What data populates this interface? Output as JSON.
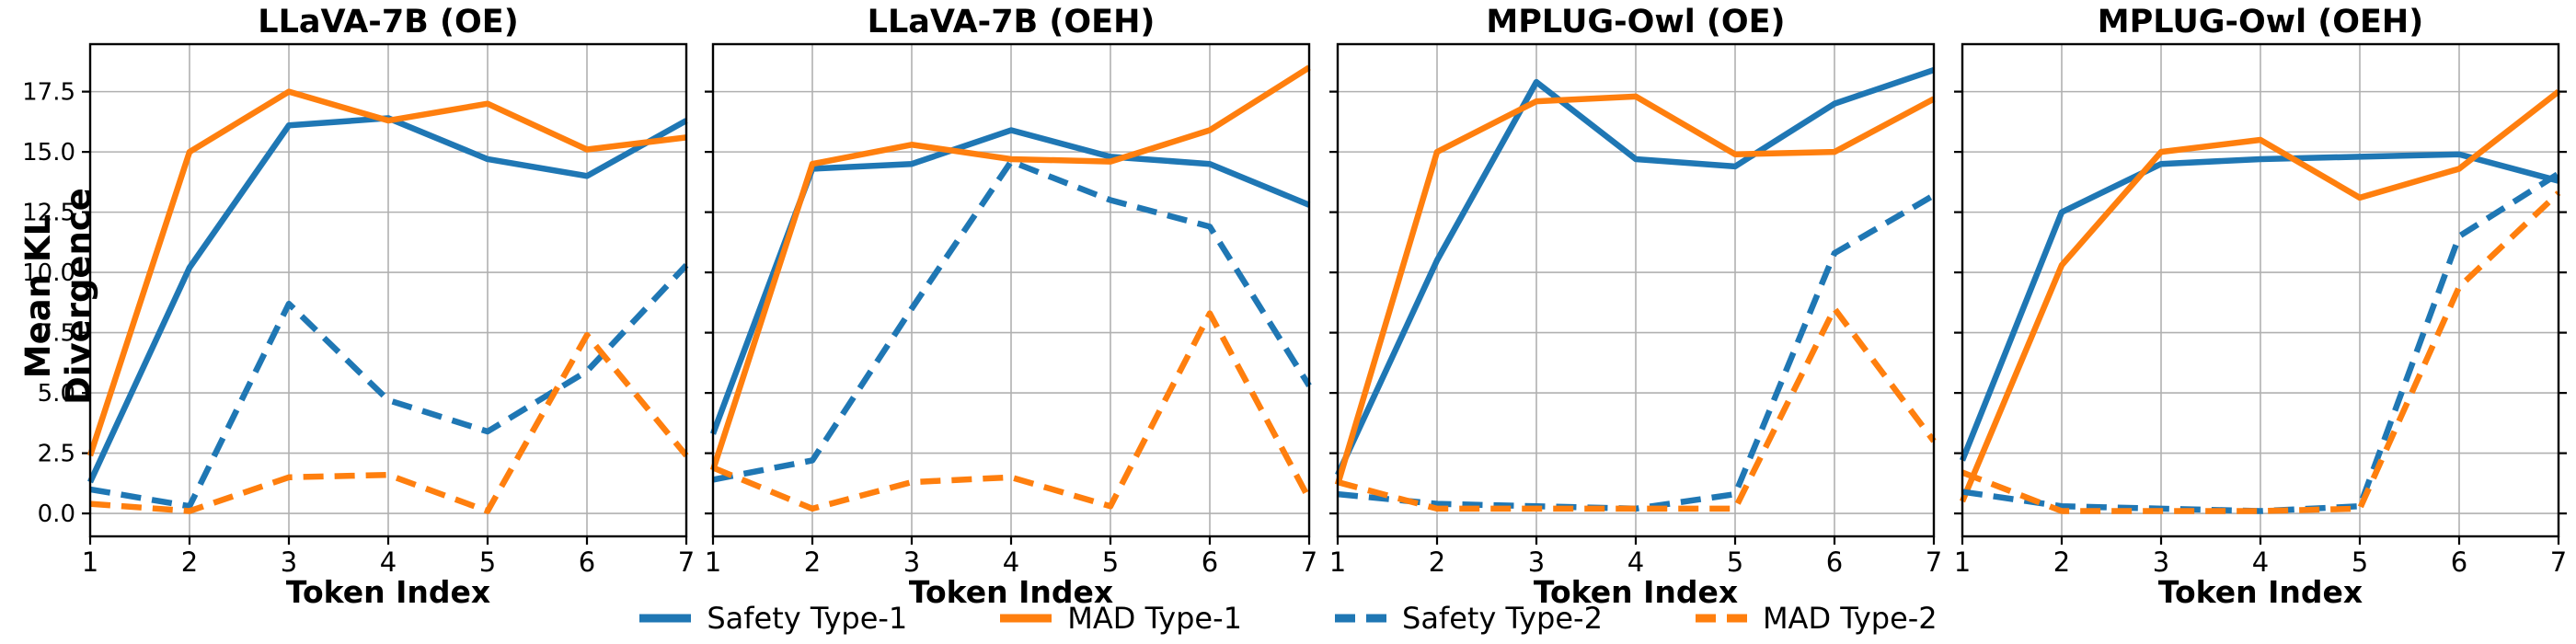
{
  "figure": {
    "ylabel": "Mean KL Divergence",
    "xlabel": "Token Index",
    "grid_color": "#b0b0b0",
    "spine_color": "#000000",
    "legend": [
      {
        "label": "Safety Type-1",
        "color": "#1f77b4",
        "dash": false
      },
      {
        "label": "MAD Type-1",
        "color": "#ff7f0e",
        "dash": false
      },
      {
        "label": "Safety Type-2",
        "color": "#1f77b4",
        "dash": true
      },
      {
        "label": "MAD Type-2",
        "color": "#ff7f0e",
        "dash": true
      }
    ]
  },
  "chart_data": [
    {
      "type": "line",
      "title": "LLaVA-7B (OE)",
      "xlabel": "Token Index",
      "ylabel": "Mean KL Divergence",
      "x": [
        1,
        2,
        3,
        4,
        5,
        6,
        7
      ],
      "xticks": [
        "1",
        "2",
        "3",
        "4",
        "5",
        "6",
        "7"
      ],
      "yticks": [
        0.0,
        2.5,
        5.0,
        7.5,
        10.0,
        12.5,
        15.0,
        17.5
      ],
      "ylim": [
        -0.95,
        19.47
      ],
      "grid": true,
      "series": [
        {
          "name": "Safety Type-1",
          "color": "#1f77b4",
          "style": "solid",
          "values": [
            1.3,
            10.2,
            16.1,
            16.4,
            14.7,
            14.0,
            16.3
          ]
        },
        {
          "name": "MAD Type-1",
          "color": "#ff7f0e",
          "style": "solid",
          "values": [
            2.4,
            15.0,
            17.5,
            16.3,
            17.0,
            15.1,
            15.6
          ]
        },
        {
          "name": "Safety Type-2",
          "color": "#1f77b4",
          "style": "dashed",
          "values": [
            1.0,
            0.3,
            8.7,
            4.7,
            3.4,
            5.9,
            10.3
          ]
        },
        {
          "name": "MAD Type-2",
          "color": "#ff7f0e",
          "style": "dashed",
          "values": [
            0.4,
            0.1,
            1.5,
            1.6,
            0.1,
            7.4,
            2.4
          ]
        }
      ]
    },
    {
      "type": "line",
      "title": "LLaVA-7B (OEH)",
      "xlabel": "Token Index",
      "ylabel": "Mean KL Divergence",
      "x": [
        1,
        2,
        3,
        4,
        5,
        6,
        7
      ],
      "xticks": [
        "1",
        "2",
        "3",
        "4",
        "5",
        "6",
        "7"
      ],
      "yticks": [
        0.0,
        2.5,
        5.0,
        7.5,
        10.0,
        12.5,
        15.0,
        17.5
      ],
      "ylim": [
        -0.95,
        19.47
      ],
      "grid": true,
      "series": [
        {
          "name": "Safety Type-1",
          "color": "#1f77b4",
          "style": "solid",
          "values": [
            3.3,
            14.3,
            14.5,
            15.9,
            14.8,
            14.5,
            12.8
          ]
        },
        {
          "name": "MAD Type-1",
          "color": "#ff7f0e",
          "style": "solid",
          "values": [
            1.8,
            14.5,
            15.3,
            14.7,
            14.6,
            15.9,
            18.5
          ]
        },
        {
          "name": "Safety Type-2",
          "color": "#1f77b4",
          "style": "dashed",
          "values": [
            1.4,
            2.2,
            8.5,
            14.6,
            13.0,
            11.9,
            5.3
          ]
        },
        {
          "name": "MAD Type-2",
          "color": "#ff7f0e",
          "style": "dashed",
          "values": [
            1.9,
            0.2,
            1.3,
            1.5,
            0.3,
            8.3,
            0.6
          ]
        }
      ]
    },
    {
      "type": "line",
      "title": "MPLUG-Owl (OE)",
      "xlabel": "Token Index",
      "ylabel": "Mean KL Divergence",
      "x": [
        1,
        2,
        3,
        4,
        5,
        6,
        7
      ],
      "xticks": [
        "1",
        "2",
        "3",
        "4",
        "5",
        "6",
        "7"
      ],
      "yticks": [
        0.0,
        2.5,
        5.0,
        7.5,
        10.0,
        12.5,
        15.0,
        17.5
      ],
      "ylim": [
        -0.95,
        19.47
      ],
      "grid": true,
      "series": [
        {
          "name": "Safety Type-1",
          "color": "#1f77b4",
          "style": "solid",
          "values": [
            1.6,
            10.5,
            17.9,
            14.7,
            14.4,
            17.0,
            18.4
          ]
        },
        {
          "name": "MAD Type-1",
          "color": "#ff7f0e",
          "style": "solid",
          "values": [
            1.2,
            15.0,
            17.1,
            17.3,
            14.9,
            15.0,
            17.2
          ]
        },
        {
          "name": "Safety Type-2",
          "color": "#1f77b4",
          "style": "dashed",
          "values": [
            0.8,
            0.4,
            0.3,
            0.2,
            0.8,
            10.8,
            13.2
          ]
        },
        {
          "name": "MAD Type-2",
          "color": "#ff7f0e",
          "style": "dashed",
          "values": [
            1.3,
            0.2,
            0.2,
            0.2,
            0.2,
            8.5,
            3.0
          ]
        }
      ]
    },
    {
      "type": "line",
      "title": "MPLUG-Owl (OEH)",
      "xlabel": "Token Index",
      "ylabel": "Mean KL Divergence",
      "x": [
        1,
        2,
        3,
        4,
        5,
        6,
        7
      ],
      "xticks": [
        "1",
        "2",
        "3",
        "4",
        "5",
        "6",
        "7"
      ],
      "yticks": [
        0.0,
        2.5,
        5.0,
        7.5,
        10.0,
        12.5,
        15.0,
        17.5
      ],
      "ylim": [
        -0.95,
        19.47
      ],
      "grid": true,
      "series": [
        {
          "name": "Safety Type-1",
          "color": "#1f77b4",
          "style": "solid",
          "values": [
            2.2,
            12.5,
            14.5,
            14.7,
            14.8,
            14.9,
            13.8
          ]
        },
        {
          "name": "MAD Type-1",
          "color": "#ff7f0e",
          "style": "solid",
          "values": [
            0.5,
            10.3,
            15.0,
            15.5,
            13.1,
            14.3,
            17.5
          ]
        },
        {
          "name": "Safety Type-2",
          "color": "#1f77b4",
          "style": "dashed",
          "values": [
            0.9,
            0.3,
            0.2,
            0.1,
            0.3,
            11.5,
            14.1
          ]
        },
        {
          "name": "MAD Type-2",
          "color": "#ff7f0e",
          "style": "dashed",
          "values": [
            1.7,
            0.1,
            0.1,
            0.1,
            0.2,
            9.4,
            13.3
          ]
        }
      ]
    }
  ]
}
